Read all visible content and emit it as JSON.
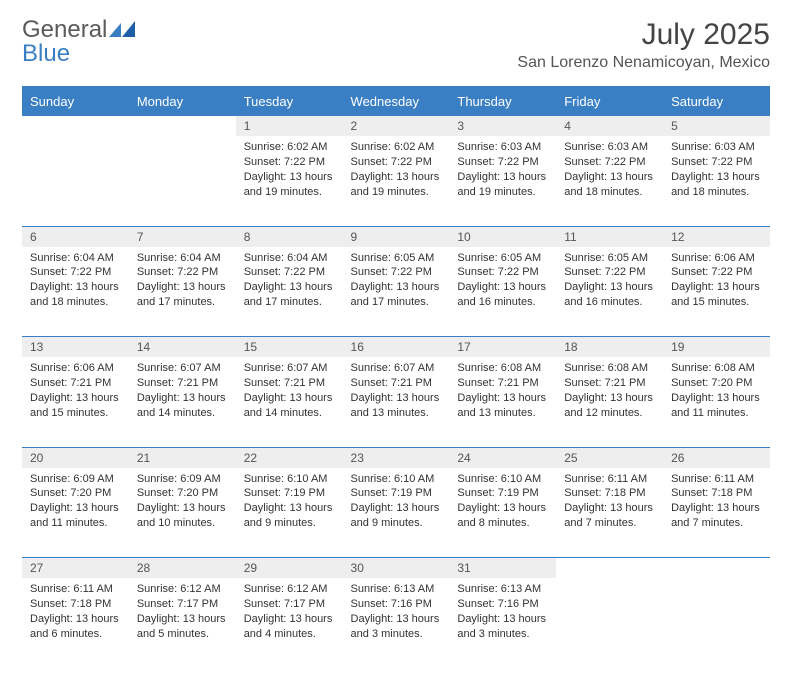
{
  "logo": {
    "word1": "General",
    "word2": "Blue"
  },
  "title": "July 2025",
  "location": "San Lorenzo Nenamicoyan, Mexico",
  "colors": {
    "header_bg": "#3a7fc4",
    "header_text": "#ffffff",
    "rule": "#3a7fc4",
    "daynum_bg": "#eeeeee",
    "text": "#333333"
  },
  "weekdays": [
    "Sunday",
    "Monday",
    "Tuesday",
    "Wednesday",
    "Thursday",
    "Friday",
    "Saturday"
  ],
  "weeks": [
    [
      null,
      null,
      {
        "n": "1",
        "sr": "6:02 AM",
        "ss": "7:22 PM",
        "dl": "13 hours and 19 minutes."
      },
      {
        "n": "2",
        "sr": "6:02 AM",
        "ss": "7:22 PM",
        "dl": "13 hours and 19 minutes."
      },
      {
        "n": "3",
        "sr": "6:03 AM",
        "ss": "7:22 PM",
        "dl": "13 hours and 19 minutes."
      },
      {
        "n": "4",
        "sr": "6:03 AM",
        "ss": "7:22 PM",
        "dl": "13 hours and 18 minutes."
      },
      {
        "n": "5",
        "sr": "6:03 AM",
        "ss": "7:22 PM",
        "dl": "13 hours and 18 minutes."
      }
    ],
    [
      {
        "n": "6",
        "sr": "6:04 AM",
        "ss": "7:22 PM",
        "dl": "13 hours and 18 minutes."
      },
      {
        "n": "7",
        "sr": "6:04 AM",
        "ss": "7:22 PM",
        "dl": "13 hours and 17 minutes."
      },
      {
        "n": "8",
        "sr": "6:04 AM",
        "ss": "7:22 PM",
        "dl": "13 hours and 17 minutes."
      },
      {
        "n": "9",
        "sr": "6:05 AM",
        "ss": "7:22 PM",
        "dl": "13 hours and 17 minutes."
      },
      {
        "n": "10",
        "sr": "6:05 AM",
        "ss": "7:22 PM",
        "dl": "13 hours and 16 minutes."
      },
      {
        "n": "11",
        "sr": "6:05 AM",
        "ss": "7:22 PM",
        "dl": "13 hours and 16 minutes."
      },
      {
        "n": "12",
        "sr": "6:06 AM",
        "ss": "7:22 PM",
        "dl": "13 hours and 15 minutes."
      }
    ],
    [
      {
        "n": "13",
        "sr": "6:06 AM",
        "ss": "7:21 PM",
        "dl": "13 hours and 15 minutes."
      },
      {
        "n": "14",
        "sr": "6:07 AM",
        "ss": "7:21 PM",
        "dl": "13 hours and 14 minutes."
      },
      {
        "n": "15",
        "sr": "6:07 AM",
        "ss": "7:21 PM",
        "dl": "13 hours and 14 minutes."
      },
      {
        "n": "16",
        "sr": "6:07 AM",
        "ss": "7:21 PM",
        "dl": "13 hours and 13 minutes."
      },
      {
        "n": "17",
        "sr": "6:08 AM",
        "ss": "7:21 PM",
        "dl": "13 hours and 13 minutes."
      },
      {
        "n": "18",
        "sr": "6:08 AM",
        "ss": "7:21 PM",
        "dl": "13 hours and 12 minutes."
      },
      {
        "n": "19",
        "sr": "6:08 AM",
        "ss": "7:20 PM",
        "dl": "13 hours and 11 minutes."
      }
    ],
    [
      {
        "n": "20",
        "sr": "6:09 AM",
        "ss": "7:20 PM",
        "dl": "13 hours and 11 minutes."
      },
      {
        "n": "21",
        "sr": "6:09 AM",
        "ss": "7:20 PM",
        "dl": "13 hours and 10 minutes."
      },
      {
        "n": "22",
        "sr": "6:10 AM",
        "ss": "7:19 PM",
        "dl": "13 hours and 9 minutes."
      },
      {
        "n": "23",
        "sr": "6:10 AM",
        "ss": "7:19 PM",
        "dl": "13 hours and 9 minutes."
      },
      {
        "n": "24",
        "sr": "6:10 AM",
        "ss": "7:19 PM",
        "dl": "13 hours and 8 minutes."
      },
      {
        "n": "25",
        "sr": "6:11 AM",
        "ss": "7:18 PM",
        "dl": "13 hours and 7 minutes."
      },
      {
        "n": "26",
        "sr": "6:11 AM",
        "ss": "7:18 PM",
        "dl": "13 hours and 7 minutes."
      }
    ],
    [
      {
        "n": "27",
        "sr": "6:11 AM",
        "ss": "7:18 PM",
        "dl": "13 hours and 6 minutes."
      },
      {
        "n": "28",
        "sr": "6:12 AM",
        "ss": "7:17 PM",
        "dl": "13 hours and 5 minutes."
      },
      {
        "n": "29",
        "sr": "6:12 AM",
        "ss": "7:17 PM",
        "dl": "13 hours and 4 minutes."
      },
      {
        "n": "30",
        "sr": "6:13 AM",
        "ss": "7:16 PM",
        "dl": "13 hours and 3 minutes."
      },
      {
        "n": "31",
        "sr": "6:13 AM",
        "ss": "7:16 PM",
        "dl": "13 hours and 3 minutes."
      },
      null,
      null
    ]
  ],
  "labels": {
    "sunrise": "Sunrise:",
    "sunset": "Sunset:",
    "daylight": "Daylight:"
  }
}
